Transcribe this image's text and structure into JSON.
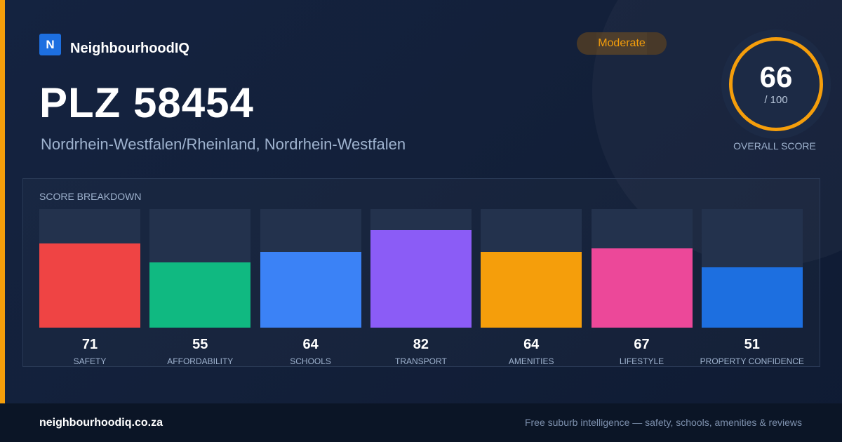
{
  "brand": {
    "logo_letter": "N",
    "name": "NeighbourhoodIQ"
  },
  "badge": {
    "label": "Moderate",
    "color": "#f59e0b"
  },
  "header": {
    "title": "PLZ 58454",
    "subtitle": "Nordrhein-Westfalen/Rheinland, Nordrhein-Westfalen"
  },
  "overall": {
    "score": "66",
    "max_label": "/ 100",
    "caption": "OVERALL SCORE"
  },
  "breakdown": {
    "title": "SCORE BREAKDOWN",
    "items": [
      {
        "label": "SAFETY",
        "value": 71,
        "color": "#ef4444"
      },
      {
        "label": "AFFORDABILITY",
        "value": 55,
        "color": "#10b981"
      },
      {
        "label": "SCHOOLS",
        "value": 64,
        "color": "#3b82f6"
      },
      {
        "label": "TRANSPORT",
        "value": 82,
        "color": "#8b5cf6"
      },
      {
        "label": "AMENITIES",
        "value": 64,
        "color": "#f59e0b"
      },
      {
        "label": "LIFESTYLE",
        "value": 67,
        "color": "#ec4899"
      },
      {
        "label": "PROPERTY CONFIDENCE",
        "value": 51,
        "color": "#1d6fe0"
      }
    ]
  },
  "chart_data": {
    "type": "bar",
    "categories": [
      "SAFETY",
      "AFFORDABILITY",
      "SCHOOLS",
      "TRANSPORT",
      "AMENITIES",
      "LIFESTYLE",
      "PROPERTY CONFIDENCE"
    ],
    "values": [
      71,
      55,
      64,
      82,
      64,
      67,
      51
    ],
    "title": "SCORE BREAKDOWN",
    "ylim": [
      0,
      100
    ]
  },
  "footer": {
    "url": "neighbourhoodiq.co.za",
    "tagline": "Free suburb intelligence — safety, schools, amenities & reviews"
  }
}
